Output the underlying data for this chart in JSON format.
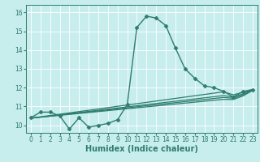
{
  "xlabel": "Humidex (Indice chaleur)",
  "ylabel": "",
  "xlim": [
    -0.5,
    23.5
  ],
  "ylim": [
    9.6,
    16.4
  ],
  "bg_color": "#c8eded",
  "grid_color": "#ffffff",
  "line_color": "#2e7d6e",
  "lines": [
    {
      "x": [
        0,
        1,
        2,
        3,
        4,
        5,
        6,
        7,
        8,
        9,
        10,
        11,
        12,
        13,
        14,
        15,
        16,
        17,
        18,
        19,
        20,
        21,
        22,
        23
      ],
      "y": [
        10.4,
        10.7,
        10.7,
        10.5,
        9.8,
        10.4,
        9.9,
        10.0,
        10.1,
        10.3,
        11.1,
        15.2,
        15.8,
        15.7,
        15.3,
        14.1,
        13.0,
        12.5,
        12.1,
        12.0,
        11.8,
        11.5,
        11.8,
        11.9
      ],
      "marker": "D",
      "markersize": 2.5,
      "linewidth": 1.0,
      "has_marker": true
    },
    {
      "x": [
        0,
        1,
        2,
        3,
        4,
        5,
        6,
        7,
        8,
        9,
        10,
        11,
        12,
        13,
        14,
        15,
        16,
        17,
        18,
        19,
        20,
        21,
        22,
        23
      ],
      "y": [
        10.38,
        10.45,
        10.52,
        10.59,
        10.66,
        10.73,
        10.8,
        10.87,
        10.94,
        11.01,
        11.08,
        11.15,
        11.22,
        11.29,
        11.36,
        11.43,
        11.5,
        11.57,
        11.64,
        11.71,
        11.78,
        11.62,
        11.75,
        11.9
      ],
      "marker": null,
      "markersize": 0,
      "linewidth": 0.9,
      "has_marker": false
    },
    {
      "x": [
        0,
        1,
        2,
        3,
        4,
        5,
        6,
        7,
        8,
        9,
        10,
        11,
        12,
        13,
        14,
        15,
        16,
        17,
        18,
        19,
        20,
        21,
        22,
        23
      ],
      "y": [
        10.38,
        10.44,
        10.5,
        10.56,
        10.62,
        10.68,
        10.74,
        10.8,
        10.86,
        10.92,
        10.98,
        11.04,
        11.1,
        11.16,
        11.22,
        11.28,
        11.34,
        11.4,
        11.46,
        11.52,
        11.58,
        11.5,
        11.67,
        11.88
      ],
      "marker": null,
      "markersize": 0,
      "linewidth": 0.9,
      "has_marker": false
    },
    {
      "x": [
        0,
        1,
        2,
        3,
        4,
        5,
        6,
        7,
        8,
        9,
        10,
        11,
        12,
        13,
        14,
        15,
        16,
        17,
        18,
        19,
        20,
        21,
        22,
        23
      ],
      "y": [
        10.38,
        10.435,
        10.49,
        10.545,
        10.6,
        10.655,
        10.71,
        10.765,
        10.82,
        10.875,
        10.93,
        10.985,
        11.04,
        11.095,
        11.15,
        11.205,
        11.26,
        11.315,
        11.37,
        11.425,
        11.48,
        11.44,
        11.615,
        11.87
      ],
      "marker": null,
      "markersize": 0,
      "linewidth": 0.9,
      "has_marker": false
    },
    {
      "x": [
        0,
        1,
        2,
        3,
        4,
        5,
        6,
        7,
        8,
        9,
        10,
        11,
        12,
        13,
        14,
        15,
        16,
        17,
        18,
        19,
        20,
        21,
        22,
        23
      ],
      "y": [
        10.38,
        10.43,
        10.48,
        10.53,
        10.58,
        10.63,
        10.68,
        10.73,
        10.78,
        10.83,
        10.88,
        10.93,
        10.98,
        11.03,
        11.08,
        11.13,
        11.18,
        11.23,
        11.28,
        11.33,
        11.38,
        11.37,
        11.56,
        11.85
      ],
      "marker": null,
      "markersize": 0,
      "linewidth": 0.9,
      "has_marker": false
    }
  ],
  "xticks": [
    0,
    1,
    2,
    3,
    4,
    5,
    6,
    7,
    8,
    9,
    10,
    11,
    12,
    13,
    14,
    15,
    16,
    17,
    18,
    19,
    20,
    21,
    22,
    23
  ],
  "yticks": [
    10,
    11,
    12,
    13,
    14,
    15,
    16
  ],
  "tick_fontsize": 5.5,
  "label_fontsize": 7.0
}
